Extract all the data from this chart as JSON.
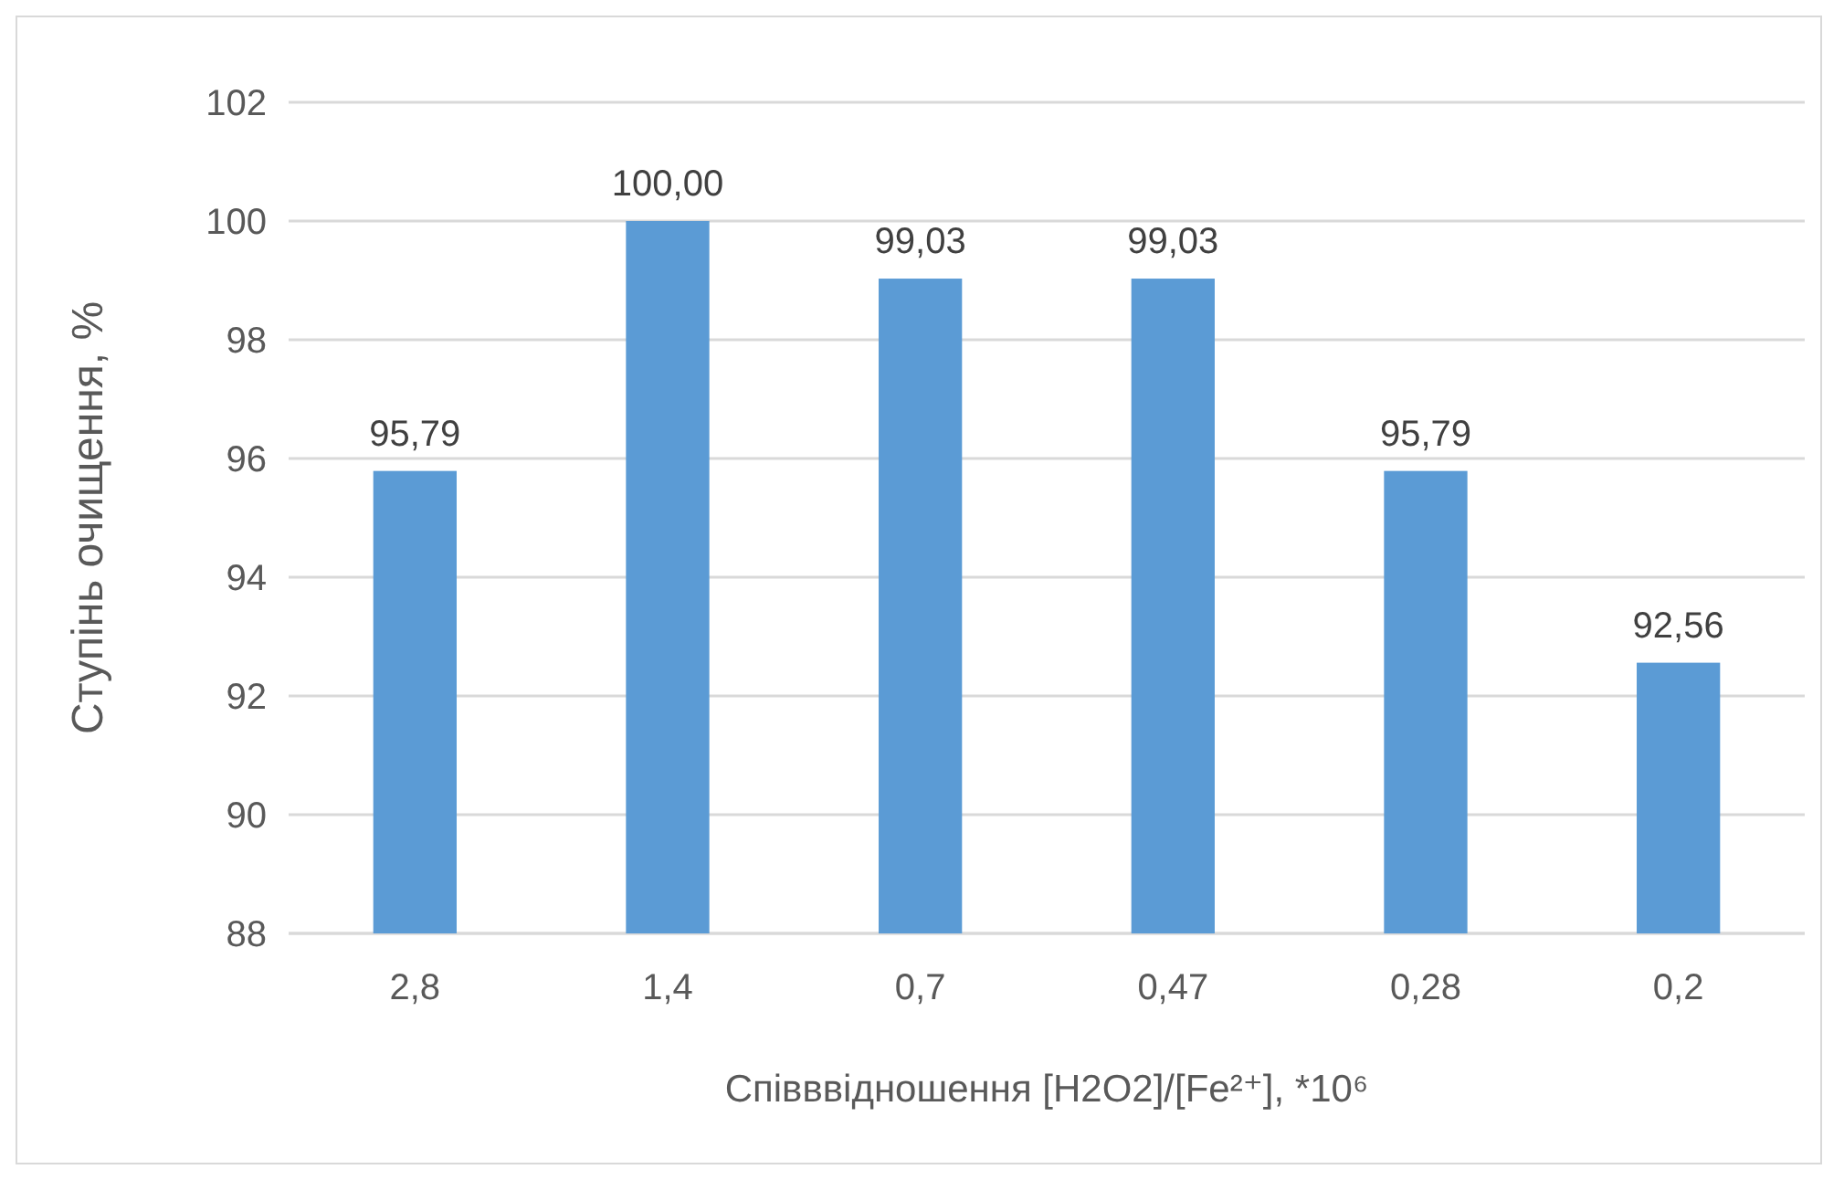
{
  "chart_data": {
    "type": "bar",
    "xlabel": "Співввідношення [H2O2]/[Fe²⁺], *10⁶",
    "ylabel": "Ступінь очищення, %",
    "categories": [
      "2,8",
      "1,4",
      "0,7",
      "0,47",
      "0,28",
      "0,2"
    ],
    "values": [
      95.79,
      100.0,
      99.03,
      99.03,
      95.79,
      92.56
    ],
    "value_labels": [
      "95,79",
      "100,00",
      "99,03",
      "99,03",
      "95,79",
      "92,56"
    ],
    "color": "#5b9bd5",
    "ylim": [
      88,
      102
    ],
    "yticks": [
      88,
      90,
      92,
      94,
      96,
      98,
      100,
      102
    ],
    "grid": "y"
  }
}
